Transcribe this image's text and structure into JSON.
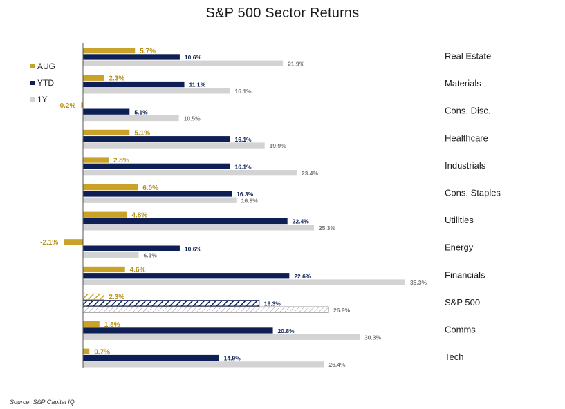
{
  "chart_data": {
    "type": "bar",
    "orientation": "horizontal",
    "title": "S&P 500 Sector Returns",
    "categories": [
      "Real Estate",
      "Materials",
      "Cons. Disc.",
      "Healthcare",
      "Industrials",
      "Cons. Staples",
      "Utilities",
      "Energy",
      "Financials",
      "S&P 500",
      "Comms",
      "Tech"
    ],
    "series": [
      {
        "name": "AUG",
        "color": "#c9a227",
        "values": [
          5.7,
          2.3,
          -0.2,
          5.1,
          2.8,
          6.0,
          4.8,
          -2.1,
          4.6,
          2.3,
          1.8,
          0.7
        ]
      },
      {
        "name": "YTD",
        "color": "#0d1f54",
        "values": [
          10.6,
          11.1,
          5.1,
          16.1,
          16.1,
          16.3,
          22.4,
          10.6,
          22.6,
          19.3,
          20.8,
          14.9
        ]
      },
      {
        "name": "1Y",
        "color": "#d3d3d3",
        "values": [
          21.9,
          16.1,
          10.5,
          19.9,
          23.4,
          16.8,
          25.3,
          6.1,
          35.3,
          26.9,
          30.3,
          26.4
        ]
      }
    ],
    "highlight_category": "S&P 500",
    "value_suffix": "%",
    "legend_position": "left",
    "grid": false
  },
  "source": "Source: S&P Capital IQ"
}
